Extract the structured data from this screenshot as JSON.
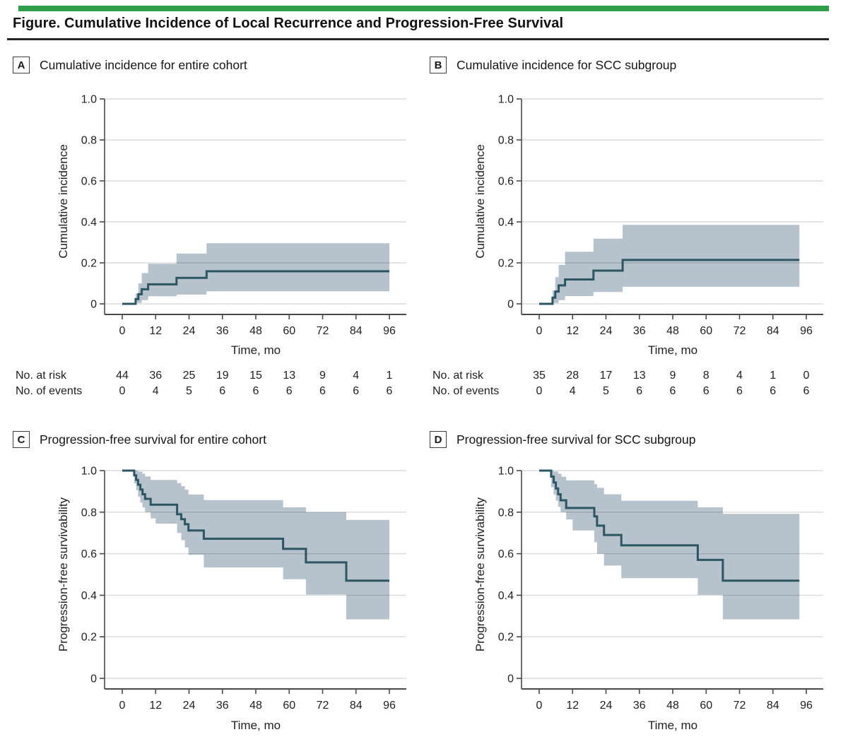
{
  "figure": {
    "title": "Figure. Cumulative Incidence of Local Recurrence and Progression-Free Survival"
  },
  "colors": {
    "accent_green": "#2f9e4b",
    "line": "#2c5663",
    "band": "#b6c3cc",
    "grid_on_white": "rgba(0,0,0,0.14)",
    "axis": "#4a4a4a",
    "text": "#1f1f1f"
  },
  "axes": {
    "xlabel": "Time, mo",
    "xticks": [
      0,
      12,
      24,
      36,
      48,
      60,
      72,
      84,
      96
    ],
    "ytick_labels": [
      "0",
      "0.2",
      "0.4",
      "0.6",
      "0.8",
      "1.0"
    ],
    "ytick_values": [
      0,
      0.2,
      0.4,
      0.6,
      0.8,
      1.0
    ],
    "ylim": [
      0,
      1
    ],
    "xlim": [
      0,
      96
    ]
  },
  "risk_labels": {
    "at_risk": "No. at risk",
    "events": "No. of events"
  },
  "chart_data": [
    {
      "panel": "A",
      "type": "line",
      "subtype": "step-cumulative-incidence",
      "title": "Cumulative incidence for entire cohort",
      "ylabel": "Cumulative incidence",
      "xlabel": "Time, mo",
      "main": {
        "t": [
          0,
          4.8,
          5.8,
          7,
          9.3,
          19.5,
          30.3
        ],
        "v": [
          0,
          0.023,
          0.047,
          0.071,
          0.095,
          0.127,
          0.159
        ],
        "end": 96
      },
      "ci_upper": {
        "t": [
          0,
          4.8,
          5.8,
          7,
          9.3,
          19.5,
          30.3
        ],
        "v": [
          0,
          0.05,
          0.1,
          0.15,
          0.196,
          0.245,
          0.296
        ],
        "end": 96
      },
      "ci_lower": {
        "t": [
          0,
          4.8,
          7,
          9.3,
          19.5,
          30.3
        ],
        "v": [
          0,
          0.004,
          0.018,
          0.037,
          0.045,
          0.061
        ],
        "end": 96
      },
      "no_at_risk": [
        44,
        36,
        25,
        19,
        15,
        13,
        9,
        4,
        1
      ],
      "no_of_events": [
        0,
        4,
        5,
        6,
        6,
        6,
        6,
        6,
        6
      ]
    },
    {
      "panel": "B",
      "type": "line",
      "subtype": "step-cumulative-incidence",
      "title": "Cumulative incidence for SCC subgroup",
      "ylabel": "Cumulative incidence",
      "xlabel": "Time, mo",
      "main": {
        "t": [
          0,
          4.8,
          5.8,
          7,
          9.3,
          19.5,
          30
        ],
        "v": [
          0,
          0.03,
          0.06,
          0.09,
          0.119,
          0.162,
          0.214
        ],
        "end": 93.5
      },
      "ci_upper": {
        "t": [
          0,
          4.8,
          5.8,
          7,
          9.3,
          19.5,
          30
        ],
        "v": [
          0,
          0.065,
          0.13,
          0.19,
          0.254,
          0.318,
          0.385
        ],
        "end": 93.5
      },
      "ci_lower": {
        "t": [
          0,
          4.8,
          7,
          9.3,
          19.5,
          30
        ],
        "v": [
          0,
          0.004,
          0.018,
          0.038,
          0.058,
          0.083
        ],
        "end": 93.5
      },
      "no_at_risk": [
        35,
        28,
        17,
        13,
        9,
        8,
        4,
        1,
        0
      ],
      "no_of_events": [
        0,
        4,
        5,
        6,
        6,
        6,
        6,
        6,
        6
      ]
    },
    {
      "panel": "C",
      "type": "line",
      "subtype": "step-kaplan-meier",
      "title": "Progression-free survival for entire cohort",
      "ylabel": "Progression-free survivability",
      "xlabel": "Time, mo",
      "main": {
        "t": [
          0,
          4.3,
          5,
          5.7,
          6.5,
          7.3,
          8.2,
          10.2,
          19.7,
          21.2,
          22.5,
          23.8,
          29.3,
          57.8,
          66,
          80.5
        ],
        "v": [
          1,
          0.977,
          0.955,
          0.932,
          0.909,
          0.886,
          0.864,
          0.836,
          0.79,
          0.766,
          0.742,
          0.712,
          0.672,
          0.623,
          0.558,
          0.47
        ],
        "end": 96
      },
      "ci_upper": {
        "t": [
          0,
          5.7,
          7.3,
          8.2,
          10.2,
          19.7,
          21.2,
          22.5,
          23.8,
          29.3,
          57.8,
          66,
          80.5
        ],
        "v": [
          1,
          0.995,
          0.985,
          0.972,
          0.955,
          0.94,
          0.925,
          0.908,
          0.885,
          0.858,
          0.823,
          0.8,
          0.763
        ],
        "end": 96
      },
      "ci_lower": {
        "t": [
          0,
          4.3,
          5,
          5.7,
          6.5,
          7.3,
          8.2,
          10.2,
          12,
          19.7,
          21.2,
          22.5,
          23.8,
          29.3,
          57.8,
          66,
          80.5
        ],
        "v": [
          1,
          0.938,
          0.905,
          0.873,
          0.846,
          0.822,
          0.8,
          0.77,
          0.745,
          0.7,
          0.665,
          0.63,
          0.595,
          0.534,
          0.477,
          0.403,
          0.284
        ],
        "end": 96
      }
    },
    {
      "panel": "D",
      "type": "line",
      "subtype": "step-kaplan-meier",
      "title": "Progression-free survival for SCC subgroup",
      "ylabel": "Progression-free survivability",
      "xlabel": "Time, mo",
      "main": {
        "t": [
          0,
          4.3,
          5.2,
          6,
          6.8,
          7.7,
          9.7,
          19.8,
          20.8,
          23.3,
          29.5,
          57,
          66
        ],
        "v": [
          1,
          0.971,
          0.943,
          0.914,
          0.886,
          0.857,
          0.82,
          0.78,
          0.735,
          0.69,
          0.64,
          0.57,
          0.47
        ],
        "end": 93.5
      },
      "ci_upper": {
        "t": [
          0,
          5.2,
          6.8,
          8,
          9.7,
          19.8,
          20.8,
          23.3,
          29.5,
          57,
          66
        ],
        "v": [
          1,
          0.996,
          0.985,
          0.97,
          0.953,
          0.935,
          0.917,
          0.886,
          0.855,
          0.823,
          0.792
        ],
        "end": 93.5
      },
      "ci_lower": {
        "t": [
          0,
          4.3,
          5.2,
          6,
          6.8,
          7.7,
          9.7,
          12,
          19.8,
          20.8,
          23.3,
          29.5,
          57,
          66
        ],
        "v": [
          1,
          0.92,
          0.885,
          0.855,
          0.826,
          0.8,
          0.765,
          0.712,
          0.655,
          0.6,
          0.543,
          0.482,
          0.402,
          0.284
        ],
        "end": 93.5
      }
    }
  ]
}
